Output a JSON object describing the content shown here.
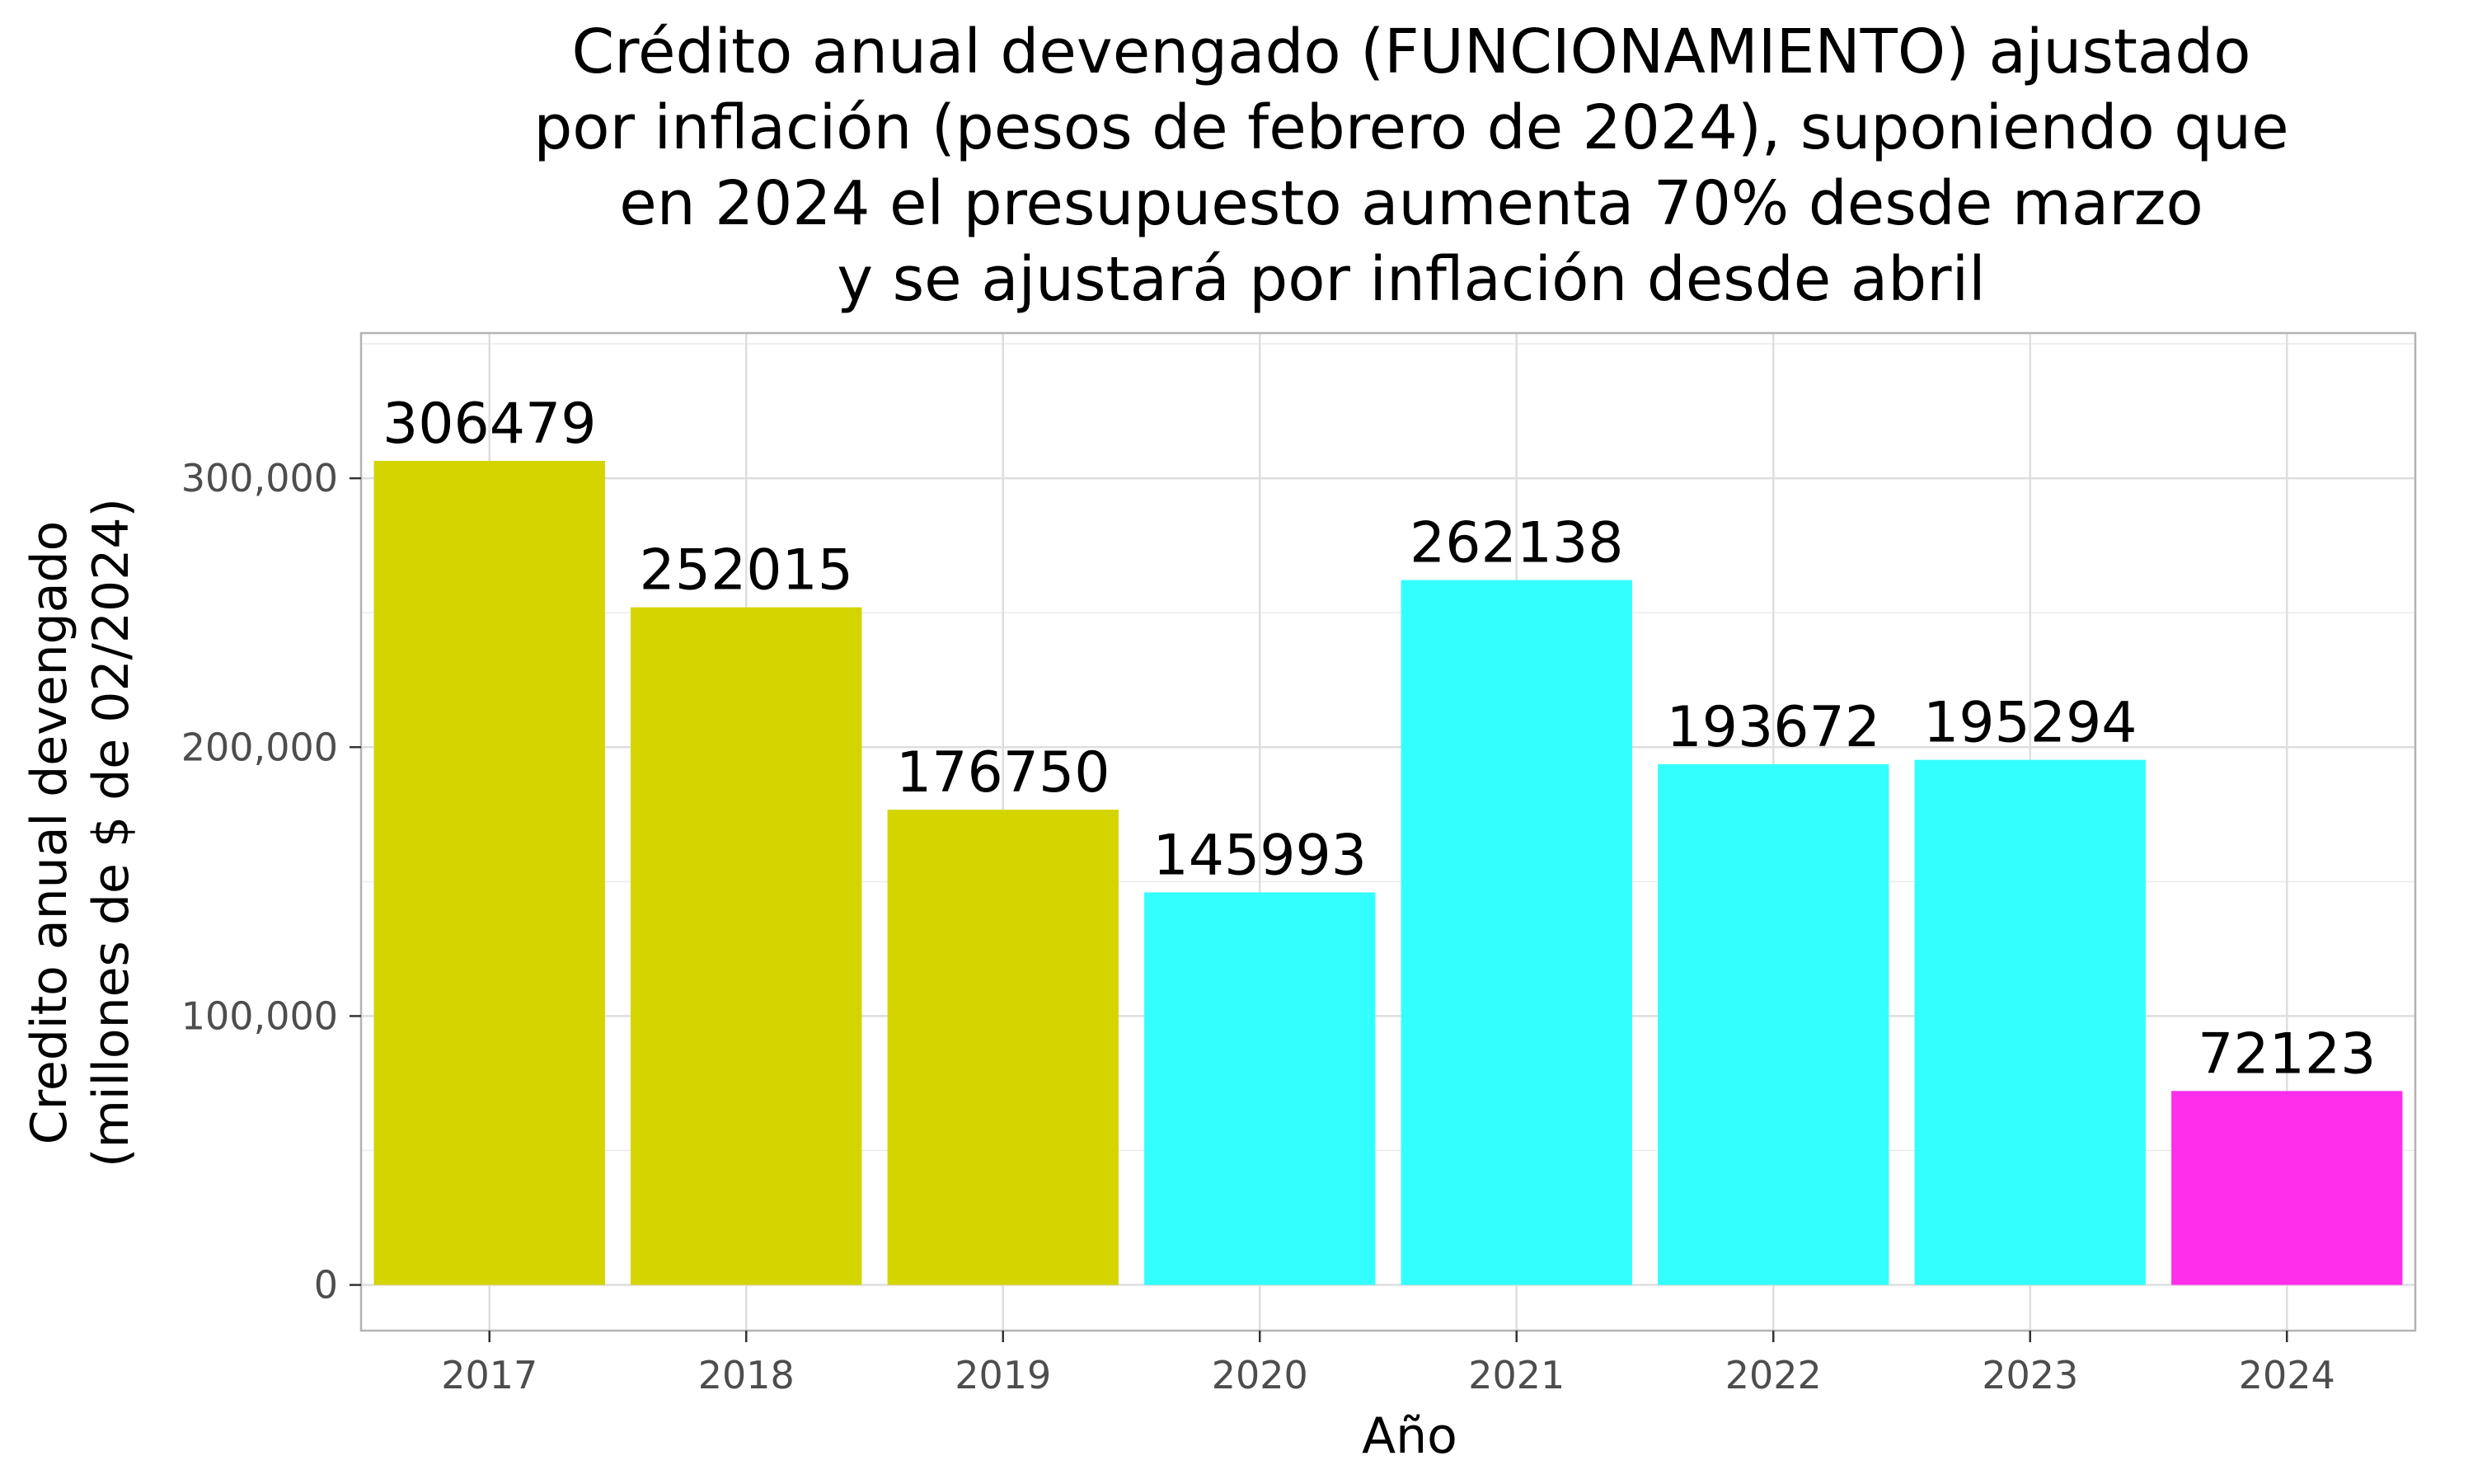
{
  "chart_data": {
    "type": "bar",
    "title": [
      "Crédito anual devengado (FUNCIONAMIENTO) ajustado",
      "por inflación (pesos de febrero de 2024), suponiendo que",
      "en 2024 el presupuesto aumenta 70% desde marzo",
      "y se ajustará por inflación desde abril"
    ],
    "xlabel": "Año",
    "ylabel": [
      "Credito anual devengado",
      "(millones de $ de 02/2024)"
    ],
    "categories": [
      "2017",
      "2018",
      "2019",
      "2020",
      "2021",
      "2022",
      "2023",
      "2024"
    ],
    "values": [
      306479,
      252015,
      176750,
      145993,
      262138,
      193672,
      195294,
      72123
    ],
    "data_labels": [
      "306479",
      "252015",
      "176750",
      "145993",
      "262138",
      "193672",
      "195294",
      "72123"
    ],
    "bar_colors": [
      "#d4d400",
      "#d4d400",
      "#d4d400",
      "#33ffff",
      "#33ffff",
      "#33ffff",
      "#33ffff",
      "#ff2eea"
    ],
    "ylim": [
      -17000,
      354000
    ],
    "y_ticks": [
      0,
      100000,
      200000,
      300000
    ],
    "y_tick_labels": [
      "0",
      "100,000",
      "200,000",
      "300,000"
    ],
    "grid": true,
    "legend": "none"
  }
}
